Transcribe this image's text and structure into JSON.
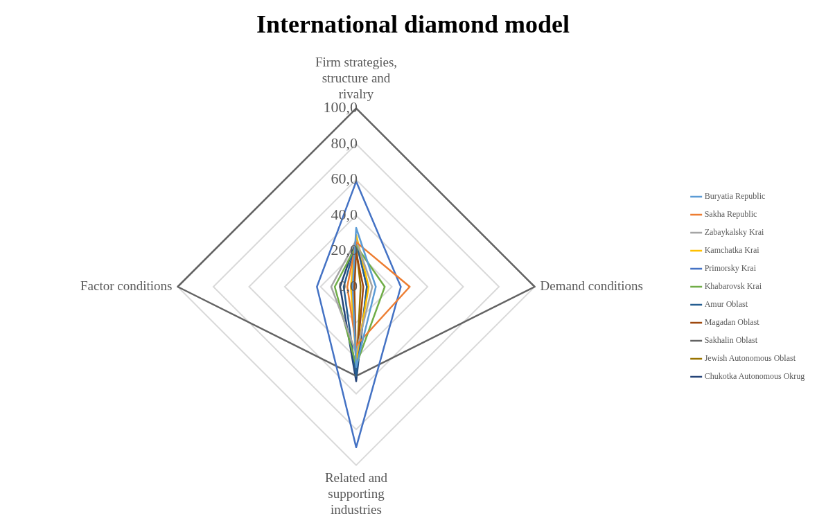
{
  "chart_data": {
    "type": "radar",
    "title": "International diamond model",
    "categories": [
      "Firm strategies, structure and rivalry",
      "Demand conditions",
      "Related and supporting industries",
      "Factor conditions"
    ],
    "ylim": [
      0,
      100
    ],
    "yticks": [
      {
        "value": 0,
        "label": "0,0"
      },
      {
        "value": 20,
        "label": "20,0"
      },
      {
        "value": 40,
        "label": "40,0"
      },
      {
        "value": 60,
        "label": "60,0"
      },
      {
        "value": 80,
        "label": "80,0"
      },
      {
        "value": 100,
        "label": "100,0"
      }
    ],
    "grid": true,
    "legend": "right",
    "marker": "none",
    "line_style": "solid",
    "series": [
      {
        "name": "Buryatia Republic",
        "color": "#5b9bd5",
        "values": [
          33,
          11,
          45,
          2
        ]
      },
      {
        "name": "Sakha Republic",
        "color": "#ed7d31",
        "values": [
          25,
          30,
          33,
          5
        ]
      },
      {
        "name": "Zabaykalsky Krai",
        "color": "#a5a5a5",
        "values": [
          26,
          9,
          37,
          14
        ]
      },
      {
        "name": "Kamchatka Krai",
        "color": "#ffc000",
        "values": [
          29,
          7,
          41,
          3
        ]
      },
      {
        "name": "Primorsky Krai",
        "color": "#4472c4",
        "values": [
          59,
          25,
          90,
          22
        ]
      },
      {
        "name": "Khabarovsk Krai",
        "color": "#70ad47",
        "values": [
          23,
          16,
          44,
          12
        ]
      },
      {
        "name": "Amur Oblast",
        "color": "#255e91",
        "values": [
          25,
          6,
          50,
          7
        ]
      },
      {
        "name": "Magadan Oblast",
        "color": "#9e480e",
        "values": [
          19,
          4,
          45,
          1
        ]
      },
      {
        "name": "Sakhalin Oblast",
        "color": "#636363",
        "values": [
          100,
          100,
          50,
          100
        ]
      },
      {
        "name": "Jewish Autonomous Oblast",
        "color": "#997300",
        "values": [
          22,
          2.5,
          48,
          1.6
        ]
      },
      {
        "name": "Chukotka Autonomous Okrug",
        "color": "#264478",
        "values": [
          26,
          6,
          53,
          9
        ]
      }
    ]
  }
}
